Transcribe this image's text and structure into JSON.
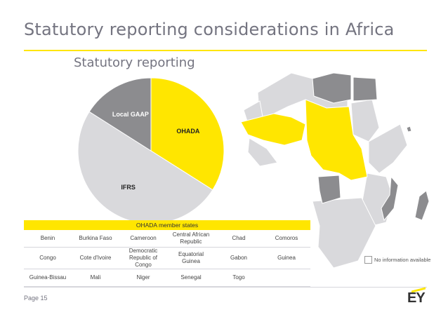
{
  "slide": {
    "title": "Statutory reporting considerations in Africa",
    "subtitle": "Statutory reporting",
    "page": "Page 15",
    "logo": "EY"
  },
  "colors": {
    "ohada": "#ffe600",
    "ifrs": "#d9d9dc",
    "local_gaap": "#8c8c8f",
    "no_info": "#ffffff",
    "accent": "#ffe600"
  },
  "chart_data": {
    "type": "pie",
    "title": "Statutory reporting",
    "slices": [
      {
        "label": "OHADA",
        "value": 17,
        "color": "#ffe600"
      },
      {
        "label": "IFRS",
        "value": 25,
        "color": "#d9d9dc"
      },
      {
        "label": "Local GAAP",
        "value": 8,
        "color": "#8c8c8f"
      }
    ]
  },
  "table": {
    "header": "OHADA member states",
    "rows": [
      [
        "Benin",
        "Burkina Faso",
        "Cameroon",
        "Central African Republic",
        "Chad",
        "Comoros"
      ],
      [
        "Congo",
        "Cote d'Ivoire",
        "Democratic Republic of Congo",
        "Equatorial Guinea",
        "Gabon",
        "Guinea"
      ],
      [
        "Guinea-Bissau",
        "Mali",
        "Niger",
        "Senegal",
        "Togo",
        ""
      ]
    ]
  },
  "legend": {
    "no_info": "No information available"
  }
}
